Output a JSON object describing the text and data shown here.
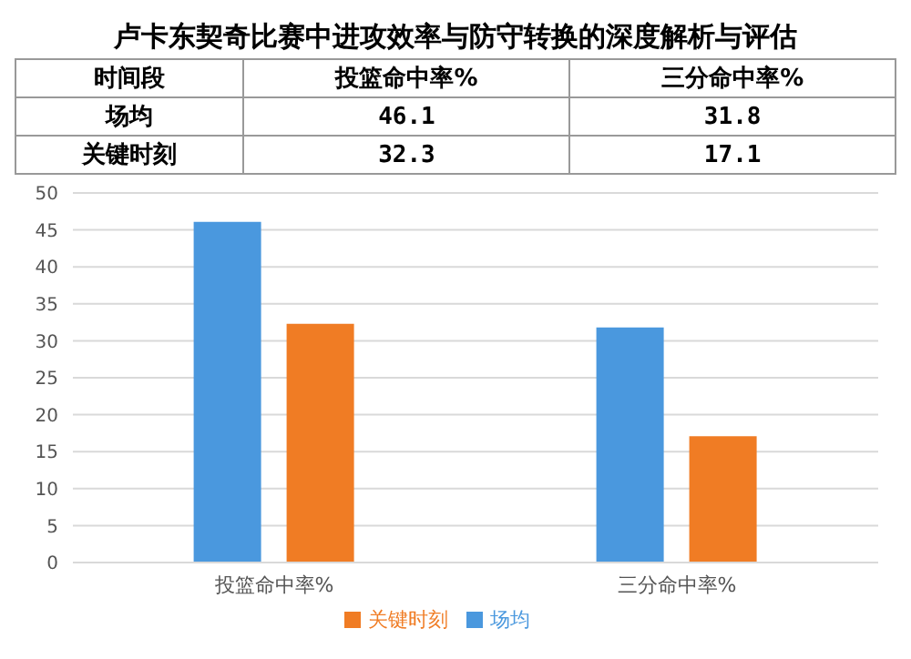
{
  "chart_data": {
    "type": "bar",
    "title": "卢卡东契奇比赛中进攻效率与防守转换的深度解析与评估",
    "legend_title": "时间段",
    "categories": [
      "投篮命中率%",
      "三分命中率%"
    ],
    "series": [
      {
        "name": "场均",
        "color": "#4a98de",
        "values": [
          46.1,
          31.8
        ]
      },
      {
        "name": "关键时刻",
        "color": "#f07c24",
        "values": [
          32.3,
          17.1
        ]
      }
    ],
    "ylim": [
      0,
      50
    ],
    "yticks": [
      0,
      5,
      10,
      15,
      20,
      25,
      30,
      35,
      40,
      45,
      50
    ],
    "grid": "y",
    "legend": "bottom",
    "data_labels": true
  }
}
